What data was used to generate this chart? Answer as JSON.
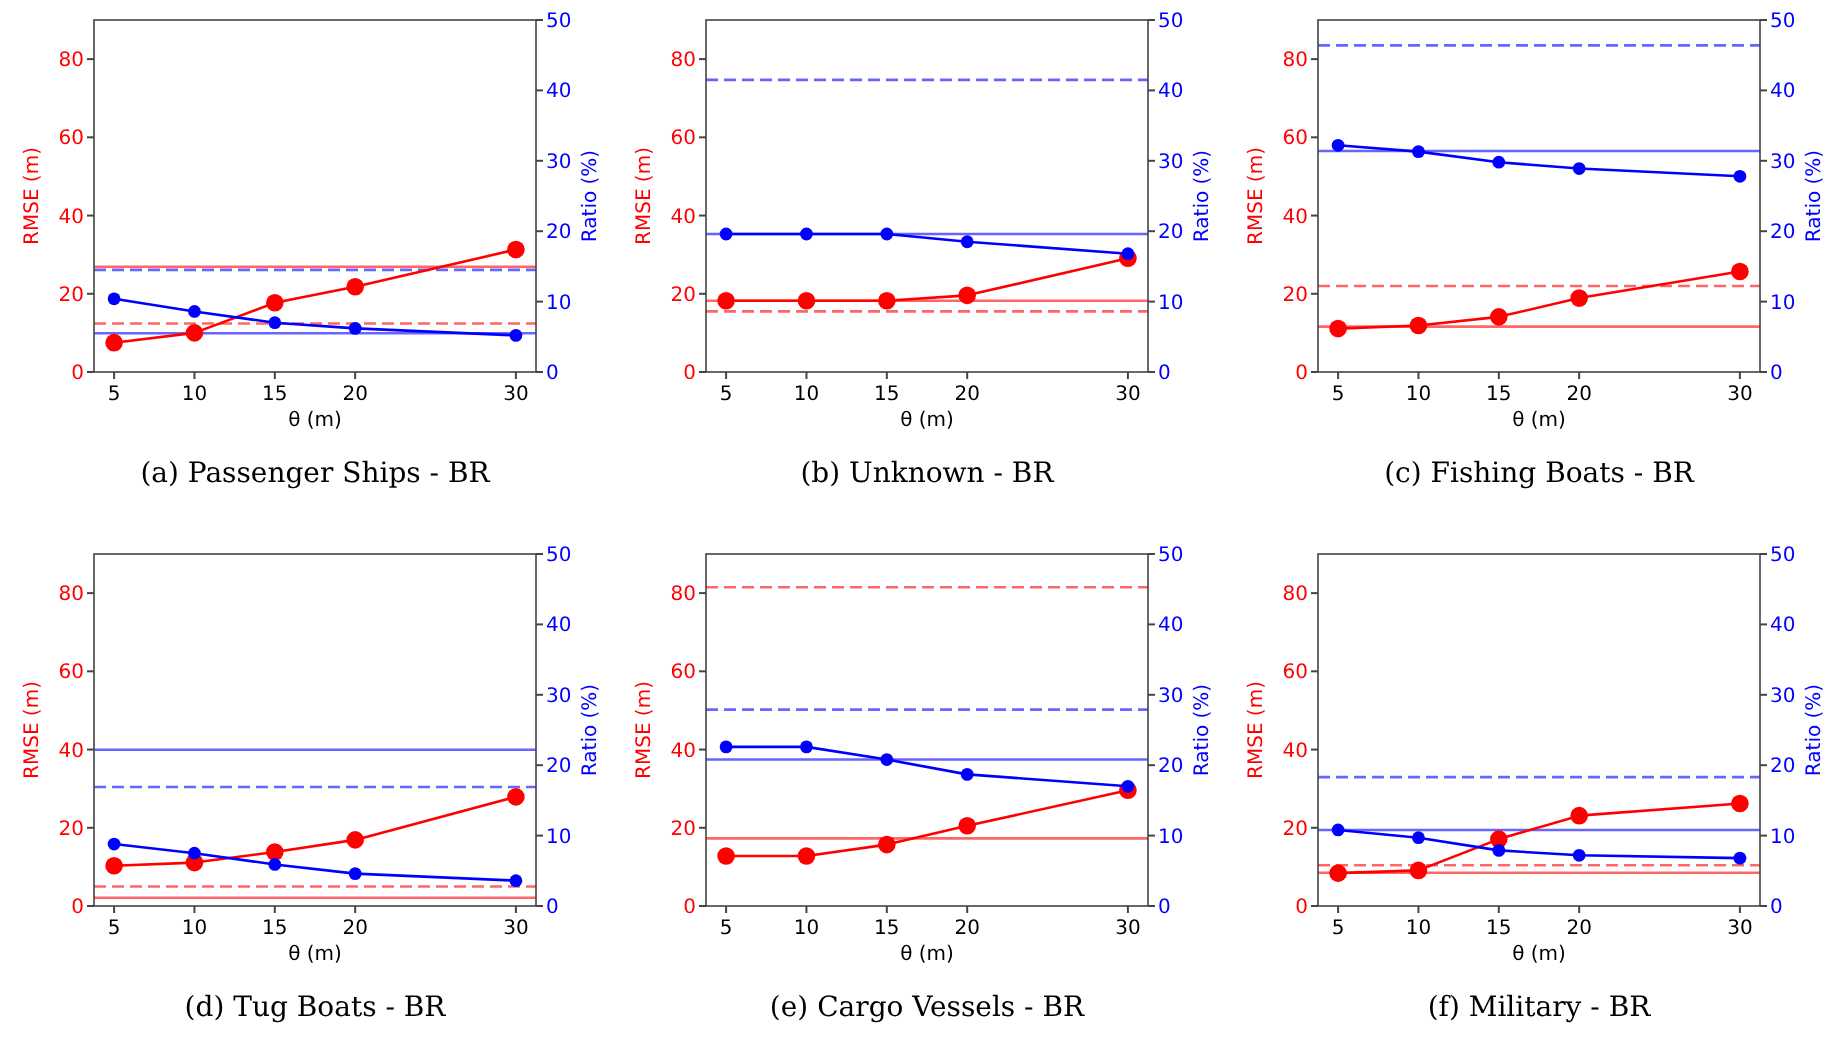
{
  "chart_data": [
    {
      "type": "line",
      "title": "(a) Passenger Ships - BR",
      "xlabel": "θ (m)",
      "ylabel": "RMSE (m)",
      "y2label": "Ratio (%)",
      "x": [
        5,
        10,
        15,
        20,
        30
      ],
      "xlim": [
        3.75,
        31.25
      ],
      "xticks": [
        5,
        10,
        15,
        20,
        30
      ],
      "ylim": [
        0,
        90
      ],
      "yticks": [
        0,
        20,
        40,
        60,
        80
      ],
      "y2lim": [
        0,
        50
      ],
      "y2ticks": [
        0,
        10,
        20,
        30,
        40,
        50
      ],
      "marker": "circle",
      "line_style": "solid",
      "series": [
        {
          "color": "#ff0000",
          "values": [
            7.5,
            10,
            17.7,
            21.8,
            31.3
          ]
        },
        {
          "color": "#0000ff",
          "axis": "y2",
          "values": [
            10.4,
            8.6,
            7.0,
            6.2,
            5.2
          ]
        }
      ],
      "ref_lines": [
        {
          "axis": "y",
          "value": 26.9,
          "color": "#ff6666",
          "line_style": "solid"
        },
        {
          "axis": "y2",
          "value": 14.5,
          "color": "#6666ff",
          "line_style": "dashed"
        },
        {
          "axis": "y",
          "value": 12.4,
          "color": "#ff6666",
          "line_style": "dashed"
        },
        {
          "axis": "y2",
          "value": 5.5,
          "color": "#6666ff",
          "line_style": "solid"
        }
      ]
    },
    {
      "type": "line",
      "title": "(b) Unknown - BR",
      "xlabel": "θ (m)",
      "ylabel": "RMSE (m)",
      "y2label": "Ratio (%)",
      "x": [
        5,
        10,
        15,
        20,
        30
      ],
      "xlim": [
        3.75,
        31.25
      ],
      "xticks": [
        5,
        10,
        15,
        20,
        30
      ],
      "ylim": [
        0,
        90
      ],
      "yticks": [
        0,
        20,
        40,
        60,
        80
      ],
      "y2lim": [
        0,
        50
      ],
      "y2ticks": [
        0,
        10,
        20,
        30,
        40,
        50
      ],
      "marker": "circle",
      "line_style": "solid",
      "series": [
        {
          "color": "#ff0000",
          "values": [
            18.2,
            18.2,
            18.2,
            19.6,
            29.1
          ]
        },
        {
          "color": "#0000ff",
          "axis": "y2",
          "values": [
            19.6,
            19.6,
            19.6,
            18.5,
            16.8
          ]
        }
      ],
      "ref_lines": [
        {
          "axis": "y2",
          "value": 41.5,
          "color": "#6666ff",
          "line_style": "dashed"
        },
        {
          "axis": "y2",
          "value": 19.6,
          "color": "#6666ff",
          "line_style": "solid"
        },
        {
          "axis": "y",
          "value": 18.2,
          "color": "#ff6666",
          "line_style": "solid"
        },
        {
          "axis": "y",
          "value": 15.5,
          "color": "#ff6666",
          "line_style": "dashed"
        }
      ]
    },
    {
      "type": "line",
      "title": "(c) Fishing Boats - BR",
      "xlabel": "θ (m)",
      "ylabel": "RMSE (m)",
      "y2label": "Ratio (%)",
      "x": [
        5,
        10,
        15,
        20,
        30
      ],
      "xlim": [
        3.75,
        31.25
      ],
      "xticks": [
        5,
        10,
        15,
        20,
        30
      ],
      "ylim": [
        0,
        90
      ],
      "yticks": [
        0,
        20,
        40,
        60,
        80
      ],
      "y2lim": [
        0,
        50
      ],
      "y2ticks": [
        0,
        10,
        20,
        30,
        40,
        50
      ],
      "marker": "circle",
      "line_style": "solid",
      "series": [
        {
          "color": "#ff0000",
          "values": [
            11.1,
            11.9,
            14.1,
            18.9,
            25.7
          ]
        },
        {
          "color": "#0000ff",
          "axis": "y2",
          "values": [
            32.2,
            31.3,
            29.8,
            28.9,
            27.8
          ]
        }
      ],
      "ref_lines": [
        {
          "axis": "y2",
          "value": 46.4,
          "color": "#6666ff",
          "line_style": "dashed"
        },
        {
          "axis": "y2",
          "value": 31.4,
          "color": "#6666ff",
          "line_style": "solid"
        },
        {
          "axis": "y",
          "value": 22,
          "color": "#ff6666",
          "line_style": "dashed"
        },
        {
          "axis": "y",
          "value": 11.6,
          "color": "#ff6666",
          "line_style": "solid"
        }
      ]
    },
    {
      "type": "line",
      "title": "(d) Tug Boats - BR",
      "xlabel": "θ (m)",
      "ylabel": "RMSE (m)",
      "y2label": "Ratio (%)",
      "x": [
        5,
        10,
        15,
        20,
        30
      ],
      "xlim": [
        3.75,
        31.25
      ],
      "xticks": [
        5,
        10,
        15,
        20,
        30
      ],
      "ylim": [
        0,
        90
      ],
      "yticks": [
        0,
        20,
        40,
        60,
        80
      ],
      "y2lim": [
        0,
        50
      ],
      "y2ticks": [
        0,
        10,
        20,
        30,
        40,
        50
      ],
      "marker": "circle",
      "line_style": "solid",
      "series": [
        {
          "color": "#ff0000",
          "values": [
            10.3,
            11.1,
            13.8,
            16.9,
            27.9
          ]
        },
        {
          "color": "#0000ff",
          "axis": "y2",
          "values": [
            8.8,
            7.5,
            5.9,
            4.6,
            3.6
          ]
        }
      ],
      "ref_lines": [
        {
          "axis": "y2",
          "value": 22.2,
          "color": "#6666ff",
          "line_style": "solid"
        },
        {
          "axis": "y2",
          "value": 16.9,
          "color": "#6666ff",
          "line_style": "dashed"
        },
        {
          "axis": "y",
          "value": 5.0,
          "color": "#ff6666",
          "line_style": "dashed"
        },
        {
          "axis": "y",
          "value": 2.1,
          "color": "#ff6666",
          "line_style": "solid"
        }
      ]
    },
    {
      "type": "line",
      "title": "(e) Cargo Vessels - BR",
      "xlabel": "θ (m)",
      "ylabel": "RMSE (m)",
      "y2label": "Ratio (%)",
      "x": [
        5,
        10,
        15,
        20,
        30
      ],
      "xlim": [
        3.75,
        31.25
      ],
      "xticks": [
        5,
        10,
        15,
        20,
        30
      ],
      "ylim": [
        0,
        90
      ],
      "yticks": [
        0,
        20,
        40,
        60,
        80
      ],
      "y2lim": [
        0,
        50
      ],
      "y2ticks": [
        0,
        10,
        20,
        30,
        40,
        50
      ],
      "marker": "circle",
      "line_style": "solid",
      "series": [
        {
          "color": "#ff0000",
          "values": [
            12.8,
            12.8,
            15.7,
            20.5,
            29.6
          ]
        },
        {
          "color": "#0000ff",
          "axis": "y2",
          "values": [
            22.6,
            22.6,
            20.8,
            18.7,
            17.0
          ]
        }
      ],
      "ref_lines": [
        {
          "axis": "y",
          "value": 81.5,
          "color": "#ff6666",
          "line_style": "dashed"
        },
        {
          "axis": "y2",
          "value": 27.9,
          "color": "#6666ff",
          "line_style": "dashed"
        },
        {
          "axis": "y2",
          "value": 20.8,
          "color": "#6666ff",
          "line_style": "solid"
        },
        {
          "axis": "y",
          "value": 17.3,
          "color": "#ff6666",
          "line_style": "solid"
        }
      ]
    },
    {
      "type": "line",
      "title": "(f) Military - BR",
      "xlabel": "θ (m)",
      "ylabel": "RMSE (m)",
      "y2label": "Ratio (%)",
      "x": [
        5,
        10,
        15,
        20,
        30
      ],
      "xlim": [
        3.75,
        31.25
      ],
      "xticks": [
        5,
        10,
        15,
        20,
        30
      ],
      "ylim": [
        0,
        90
      ],
      "yticks": [
        0,
        20,
        40,
        60,
        80
      ],
      "y2lim": [
        0,
        50
      ],
      "y2ticks": [
        0,
        10,
        20,
        30,
        40,
        50
      ],
      "marker": "circle",
      "line_style": "solid",
      "series": [
        {
          "color": "#ff0000",
          "values": [
            8.4,
            9.1,
            17.1,
            23.1,
            26.2
          ]
        },
        {
          "color": "#0000ff",
          "axis": "y2",
          "values": [
            10.8,
            9.7,
            7.9,
            7.2,
            6.8
          ]
        }
      ],
      "ref_lines": [
        {
          "axis": "y2",
          "value": 18.3,
          "color": "#6666ff",
          "line_style": "dashed"
        },
        {
          "axis": "y2",
          "value": 10.8,
          "color": "#6666ff",
          "line_style": "solid"
        },
        {
          "axis": "y",
          "value": 10.4,
          "color": "#ff6666",
          "line_style": "dashed"
        },
        {
          "axis": "y",
          "value": 8.5,
          "color": "#ff6666",
          "line_style": "solid"
        }
      ]
    }
  ]
}
